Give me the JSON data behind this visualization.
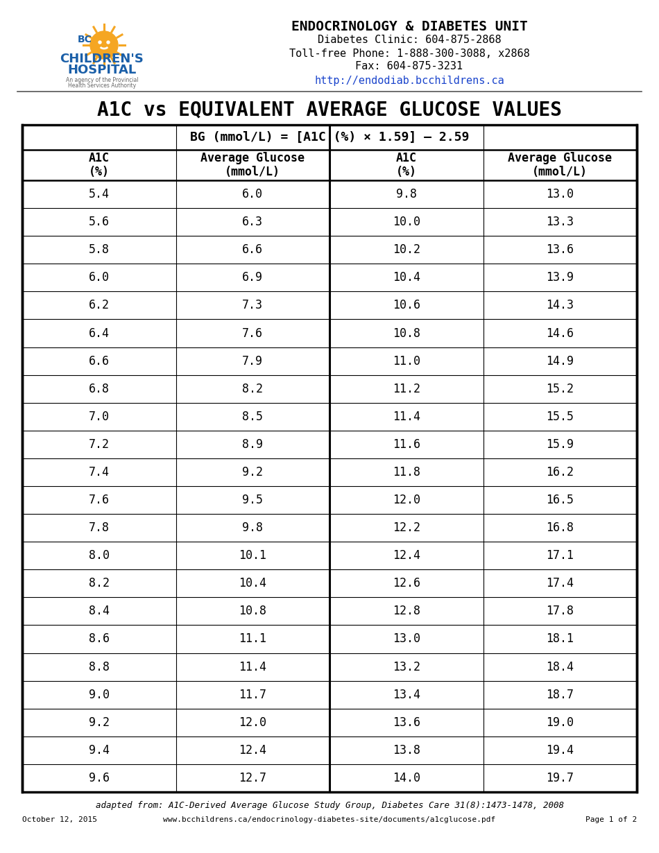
{
  "title": "A1C vs EQUIVALENT AVERAGE GLUCOSE VALUES",
  "formula": "BG (mmol/L) = [A1C (%) × 1.59] – 2.59",
  "col_headers": [
    "A1C\n(%)",
    "Average Glucose\n(mmol/L)",
    "A1C\n(%)",
    "Average Glucose\n(mmol/L)"
  ],
  "left_a1c": [
    5.4,
    5.6,
    5.8,
    6.0,
    6.2,
    6.4,
    6.6,
    6.8,
    7.0,
    7.2,
    7.4,
    7.6,
    7.8,
    8.0,
    8.2,
    8.4,
    8.6,
    8.8,
    9.0,
    9.2,
    9.4,
    9.6
  ],
  "left_avg": [
    6.0,
    6.3,
    6.6,
    6.9,
    7.3,
    7.6,
    7.9,
    8.2,
    8.5,
    8.9,
    9.2,
    9.5,
    9.8,
    10.1,
    10.4,
    10.8,
    11.1,
    11.4,
    11.7,
    12.0,
    12.4,
    12.7
  ],
  "right_a1c": [
    9.8,
    10.0,
    10.2,
    10.4,
    10.6,
    10.8,
    11.0,
    11.2,
    11.4,
    11.6,
    11.8,
    12.0,
    12.2,
    12.4,
    12.6,
    12.8,
    13.0,
    13.2,
    13.4,
    13.6,
    13.8,
    14.0
  ],
  "right_avg": [
    13.0,
    13.3,
    13.6,
    13.9,
    14.3,
    14.6,
    14.9,
    15.2,
    15.5,
    15.9,
    16.2,
    16.5,
    16.8,
    17.1,
    17.4,
    17.8,
    18.1,
    18.4,
    18.7,
    19.0,
    19.4,
    19.7
  ],
  "unit_name": "ENDOCRINOLOGY & DIABETES UNIT",
  "clinic_line": "Diabetes Clinic: 604-875-2868",
  "tollfree_line": "Toll-free Phone: 1-888-300-3088, x2868",
  "fax_line": "Fax: 604-875-3231",
  "url_line": "http://endodiab.bcchildrens.ca",
  "footer_left": "October 12, 2015",
  "footer_center": "www.bcchildrens.ca/endocrinology-diabetes-site/documents/a1cglucose.pdf",
  "footer_right": "Page 1 of 2",
  "adapted_text": "adapted from: A1C-Derived Average Glucose Study Group, Diabetes Care 31(8):1473-1478, 2008",
  "url_color": "#1a44cc",
  "logo_orange": "#f5a623",
  "logo_blue": "#1a5fa8",
  "title_fontsize": 20,
  "formula_fontsize": 13,
  "cell_fontsize": 12,
  "header_fontsize": 12,
  "unit_fontsize": 14,
  "info_fontsize": 11
}
